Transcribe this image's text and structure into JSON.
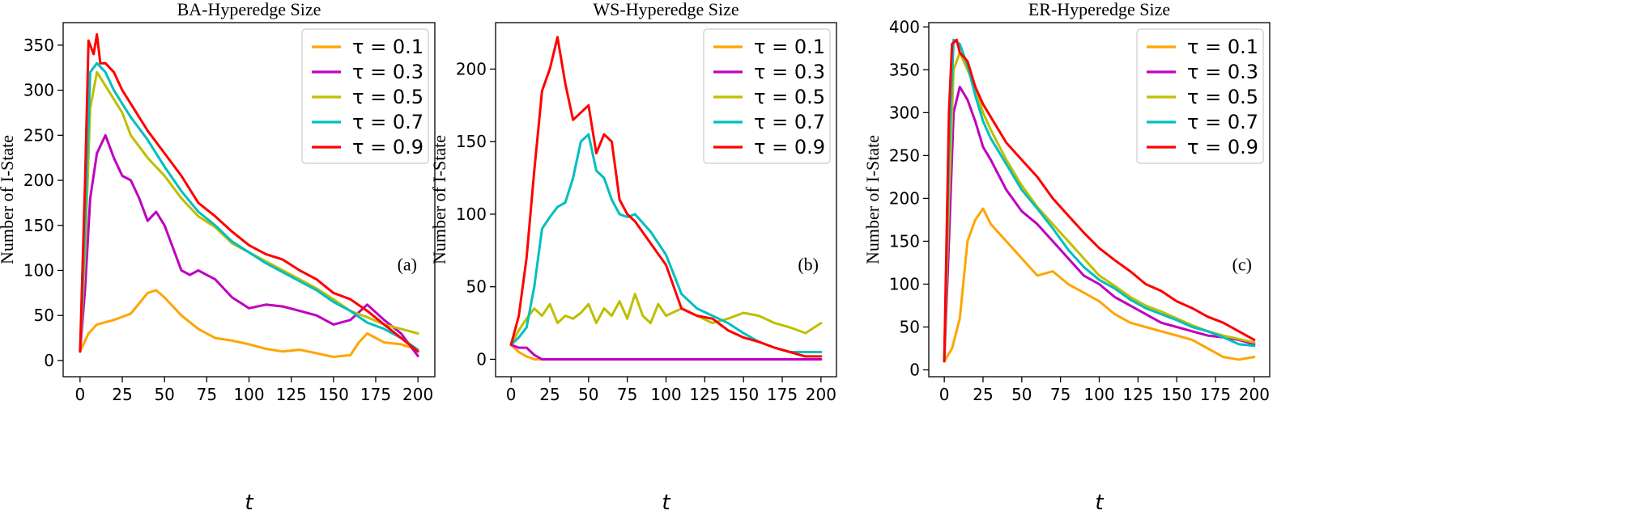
{
  "colors": {
    "tau_0_1": "#FFA500",
    "tau_0_3": "#BF00BF",
    "tau_0_5": "#BFBF00",
    "tau_0_7": "#00BFBF",
    "tau_0_9": "#FF0000"
  },
  "chart_data": [
    {
      "type": "line",
      "title": "BA-Hyperedge Size",
      "xlabel": "t",
      "ylabel": "Number of I-State",
      "panel_label": "(a)",
      "xlim": [
        -10,
        210
      ],
      "ylim": [
        -18,
        375
      ],
      "xticks": [
        0,
        25,
        50,
        75,
        100,
        125,
        150,
        175,
        200
      ],
      "yticks": [
        0,
        50,
        100,
        150,
        200,
        250,
        300,
        350
      ],
      "legend": "top-right",
      "series": [
        {
          "name": "τ = 0.1",
          "color": "#FFA500",
          "x": [
            0,
            5,
            10,
            20,
            30,
            40,
            45,
            50,
            60,
            70,
            80,
            90,
            100,
            110,
            120,
            130,
            140,
            150,
            160,
            165,
            170,
            180,
            190,
            200
          ],
          "y": [
            10,
            30,
            40,
            45,
            52,
            75,
            78,
            70,
            50,
            35,
            25,
            22,
            18,
            13,
            10,
            12,
            8,
            4,
            6,
            20,
            30,
            20,
            18,
            12
          ]
        },
        {
          "name": "τ = 0.3",
          "color": "#BF00BF",
          "x": [
            0,
            3,
            6,
            10,
            15,
            20,
            25,
            30,
            35,
            40,
            45,
            50,
            55,
            60,
            65,
            70,
            75,
            80,
            90,
            100,
            110,
            120,
            130,
            140,
            150,
            160,
            170,
            180,
            190,
            200
          ],
          "y": [
            10,
            80,
            180,
            230,
            250,
            225,
            205,
            200,
            180,
            155,
            165,
            150,
            125,
            100,
            95,
            100,
            95,
            90,
            70,
            58,
            62,
            60,
            55,
            50,
            40,
            45,
            62,
            45,
            30,
            5
          ]
        },
        {
          "name": "τ = 0.5",
          "color": "#BFBF00",
          "x": [
            0,
            3,
            6,
            10,
            15,
            20,
            25,
            30,
            40,
            50,
            60,
            70,
            80,
            90,
            100,
            110,
            120,
            130,
            140,
            150,
            160,
            170,
            180,
            190,
            200
          ],
          "y": [
            10,
            120,
            280,
            320,
            305,
            290,
            275,
            250,
            225,
            205,
            180,
            160,
            148,
            130,
            120,
            110,
            100,
            90,
            80,
            68,
            55,
            48,
            40,
            35,
            30
          ]
        },
        {
          "name": "τ = 0.7",
          "color": "#00BFBF",
          "x": [
            0,
            3,
            6,
            10,
            15,
            20,
            25,
            30,
            40,
            50,
            60,
            70,
            80,
            90,
            100,
            110,
            120,
            130,
            140,
            150,
            160,
            170,
            180,
            190,
            200
          ],
          "y": [
            10,
            150,
            320,
            330,
            320,
            300,
            285,
            270,
            245,
            215,
            188,
            165,
            150,
            132,
            120,
            108,
            98,
            88,
            78,
            65,
            55,
            42,
            35,
            25,
            12
          ]
        },
        {
          "name": "τ = 0.9",
          "color": "#FF0000",
          "x": [
            0,
            3,
            5,
            8,
            10,
            12,
            15,
            20,
            25,
            30,
            40,
            50,
            60,
            70,
            80,
            90,
            100,
            110,
            120,
            130,
            140,
            150,
            160,
            170,
            180,
            190,
            200
          ],
          "y": [
            10,
            200,
            355,
            340,
            362,
            330,
            330,
            320,
            300,
            285,
            255,
            230,
            205,
            175,
            160,
            143,
            128,
            118,
            112,
            100,
            90,
            75,
            68,
            55,
            40,
            25,
            10
          ]
        }
      ]
    },
    {
      "type": "line",
      "title": "WS-Hyperedge Size",
      "xlabel": "t",
      "ylabel": "Number of I-State",
      "panel_label": "(b)",
      "xlim": [
        -10,
        210
      ],
      "ylim": [
        -12,
        232
      ],
      "xticks": [
        0,
        25,
        50,
        75,
        100,
        125,
        150,
        175,
        200
      ],
      "yticks": [
        0,
        50,
        100,
        150,
        200
      ],
      "legend": "top-right",
      "series": [
        {
          "name": "τ = 0.1",
          "color": "#FFA500",
          "x": [
            0,
            5,
            10,
            15,
            20,
            200
          ],
          "y": [
            10,
            5,
            2,
            0,
            0,
            0
          ]
        },
        {
          "name": "τ = 0.3",
          "color": "#BF00BF",
          "x": [
            0,
            5,
            10,
            15,
            20,
            25,
            200
          ],
          "y": [
            10,
            8,
            8,
            3,
            0,
            0,
            0
          ]
        },
        {
          "name": "τ = 0.5",
          "color": "#BFBF00",
          "x": [
            0,
            5,
            10,
            15,
            20,
            25,
            30,
            35,
            40,
            45,
            50,
            55,
            60,
            65,
            70,
            75,
            80,
            85,
            90,
            95,
            100,
            110,
            120,
            130,
            140,
            150,
            160,
            170,
            180,
            190,
            200
          ],
          "y": [
            10,
            20,
            28,
            35,
            30,
            38,
            25,
            30,
            28,
            32,
            38,
            25,
            35,
            30,
            40,
            28,
            45,
            30,
            25,
            38,
            30,
            35,
            30,
            25,
            28,
            32,
            30,
            25,
            22,
            18,
            25
          ]
        },
        {
          "name": "τ = 0.7",
          "color": "#00BFBF",
          "x": [
            0,
            5,
            10,
            15,
            20,
            25,
            30,
            35,
            40,
            45,
            50,
            55,
            60,
            65,
            70,
            75,
            80,
            90,
            100,
            110,
            120,
            130,
            140,
            150,
            160,
            170,
            180,
            190,
            200
          ],
          "y": [
            10,
            15,
            22,
            50,
            90,
            98,
            105,
            108,
            125,
            150,
            155,
            130,
            125,
            110,
            100,
            98,
            100,
            88,
            72,
            45,
            35,
            30,
            25,
            18,
            12,
            8,
            5,
            5,
            5
          ]
        },
        {
          "name": "τ = 0.9",
          "color": "#FF0000",
          "x": [
            0,
            5,
            10,
            15,
            20,
            25,
            30,
            35,
            40,
            45,
            50,
            55,
            60,
            65,
            70,
            75,
            80,
            90,
            100,
            110,
            120,
            130,
            140,
            150,
            160,
            170,
            180,
            190,
            200
          ],
          "y": [
            10,
            30,
            70,
            130,
            185,
            200,
            222,
            190,
            165,
            170,
            175,
            142,
            155,
            150,
            110,
            100,
            95,
            80,
            65,
            35,
            30,
            28,
            20,
            15,
            12,
            8,
            5,
            2,
            2
          ]
        }
      ]
    },
    {
      "type": "line",
      "title": "ER-Hyperedge Size",
      "xlabel": "t",
      "ylabel": "Number of I-State",
      "panel_label": "(c)",
      "xlim": [
        -10,
        210
      ],
      "ylim": [
        -8,
        405
      ],
      "xticks": [
        0,
        25,
        50,
        75,
        100,
        125,
        150,
        175,
        200
      ],
      "yticks": [
        0,
        50,
        100,
        150,
        200,
        250,
        300,
        350,
        400
      ],
      "legend": "top-right",
      "series": [
        {
          "name": "τ = 0.1",
          "color": "#FFA500",
          "x": [
            0,
            5,
            10,
            15,
            20,
            25,
            30,
            40,
            50,
            60,
            70,
            80,
            90,
            100,
            110,
            120,
            130,
            140,
            150,
            160,
            170,
            180,
            190,
            200
          ],
          "y": [
            10,
            25,
            60,
            150,
            175,
            188,
            170,
            150,
            130,
            110,
            115,
            100,
            90,
            80,
            65,
            55,
            50,
            45,
            40,
            35,
            25,
            15,
            12,
            15
          ]
        },
        {
          "name": "τ = 0.3",
          "color": "#BF00BF",
          "x": [
            0,
            3,
            6,
            10,
            15,
            20,
            25,
            30,
            40,
            50,
            60,
            70,
            80,
            90,
            100,
            110,
            120,
            130,
            140,
            150,
            160,
            170,
            180,
            190,
            200
          ],
          "y": [
            10,
            150,
            300,
            330,
            315,
            290,
            260,
            245,
            210,
            185,
            170,
            150,
            130,
            110,
            100,
            85,
            75,
            65,
            55,
            50,
            45,
            40,
            38,
            35,
            30
          ]
        },
        {
          "name": "τ = 0.5",
          "color": "#BFBF00",
          "x": [
            0,
            3,
            6,
            10,
            15,
            20,
            25,
            30,
            40,
            50,
            60,
            70,
            80,
            90,
            100,
            110,
            120,
            130,
            140,
            150,
            160,
            170,
            180,
            190,
            200
          ],
          "y": [
            10,
            200,
            350,
            370,
            350,
            330,
            300,
            280,
            245,
            215,
            190,
            170,
            150,
            130,
            110,
            98,
            85,
            75,
            68,
            60,
            52,
            45,
            40,
            36,
            32
          ]
        },
        {
          "name": "τ = 0.7",
          "color": "#00BFBF",
          "x": [
            0,
            3,
            6,
            10,
            15,
            20,
            25,
            30,
            40,
            50,
            60,
            70,
            80,
            90,
            100,
            110,
            120,
            130,
            140,
            150,
            160,
            170,
            180,
            190,
            200
          ],
          "y": [
            10,
            250,
            385,
            380,
            355,
            320,
            290,
            270,
            240,
            210,
            188,
            165,
            140,
            120,
            105,
            95,
            82,
            72,
            65,
            58,
            50,
            45,
            38,
            30,
            28
          ]
        },
        {
          "name": "τ = 0.9",
          "color": "#FF0000",
          "x": [
            0,
            3,
            5,
            8,
            10,
            15,
            20,
            25,
            30,
            40,
            50,
            60,
            70,
            80,
            90,
            100,
            110,
            120,
            130,
            140,
            150,
            160,
            170,
            180,
            190,
            200
          ],
          "y": [
            10,
            300,
            380,
            385,
            370,
            360,
            330,
            310,
            295,
            265,
            245,
            225,
            200,
            180,
            160,
            142,
            128,
            115,
            100,
            92,
            80,
            72,
            62,
            55,
            45,
            35
          ]
        }
      ]
    }
  ]
}
